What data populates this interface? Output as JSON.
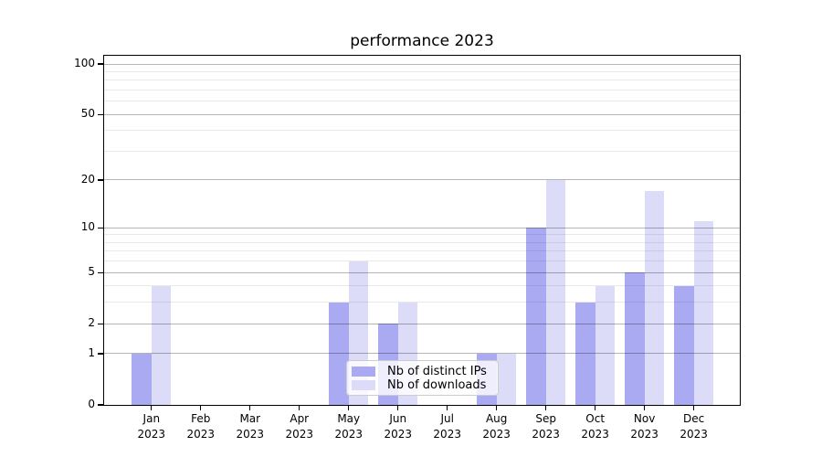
{
  "title": "performance 2023",
  "chart_data": {
    "type": "bar",
    "title": "performance 2023",
    "x_axis": {
      "months": [
        "Jan",
        "Feb",
        "Mar",
        "Apr",
        "May",
        "Jun",
        "Jul",
        "Aug",
        "Sep",
        "Oct",
        "Nov",
        "Dec"
      ],
      "year_label": "2023"
    },
    "series": [
      {
        "name": "Nb of distinct IPs",
        "color": "#aaaaf2",
        "values": [
          1,
          0,
          0,
          0,
          3,
          2,
          0,
          1,
          10,
          3,
          5,
          4
        ]
      },
      {
        "name": "Nb of downloads",
        "color": "#dcdcf8",
        "values": [
          4,
          0,
          0,
          0,
          6,
          3,
          0,
          1,
          20,
          4,
          17,
          11
        ]
      }
    ],
    "y_axis": {
      "scale": "log1p",
      "ylim": [
        0,
        112
      ],
      "major_ticks": [
        0,
        1,
        2,
        5,
        10,
        20,
        50,
        100
      ],
      "minor_gridlines": [
        3,
        4,
        6,
        7,
        8,
        9,
        30,
        40,
        60,
        70,
        80,
        90
      ]
    },
    "grid": "on",
    "legend_position": "lower-center-inside"
  },
  "colors": {
    "bar_distinct_ips": "#aaaaf2",
    "bar_downloads": "#dcdcf8",
    "major_grid": "rgba(0,0,0,0.29)",
    "minor_grid": "rgba(0,0,0,0.085)",
    "spine": "#000000",
    "legend_border": "#cccccc",
    "legend_bg": "rgba(255,255,255,0.8)"
  }
}
